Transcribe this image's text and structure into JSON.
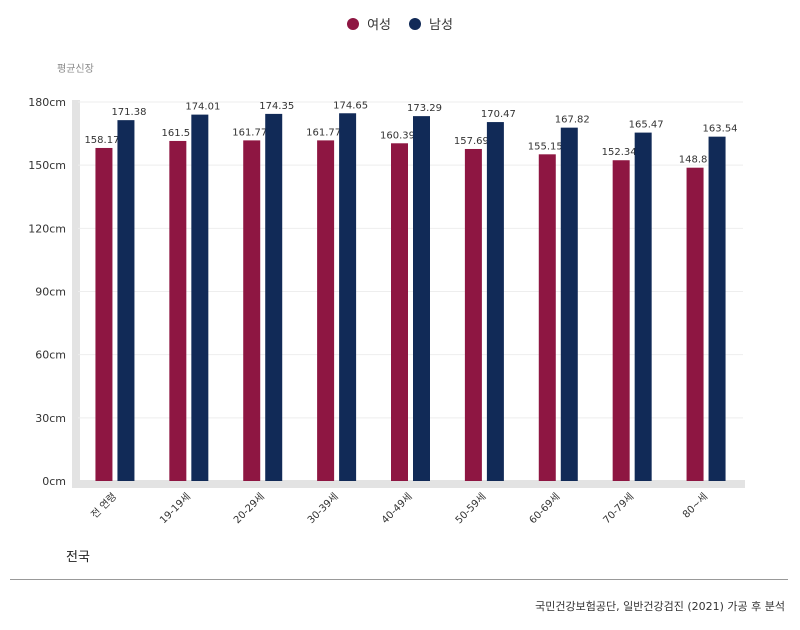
{
  "legend": {
    "female_label": "여성",
    "male_label": "남성"
  },
  "colors": {
    "female": "#8e1642",
    "male": "#112a57",
    "axis": "#e3e3e3",
    "grid": "#eeeeee"
  },
  "region_label": "전국",
  "source_text": "국민건강보험공단, 일반건강검진 (2021) 가공 후 분석",
  "chart_data": {
    "type": "bar",
    "ylabel": "평균신장",
    "ylim": [
      0,
      180
    ],
    "yticks": [
      "0cm",
      "30cm",
      "60cm",
      "90cm",
      "120cm",
      "150cm",
      "180cm"
    ],
    "ytick_values": [
      0,
      30,
      60,
      90,
      120,
      150,
      180
    ],
    "categories": [
      "전 연령",
      "19-19세",
      "20-29세",
      "30-39세",
      "40-49세",
      "50-59세",
      "60-69세",
      "70-79세",
      "80~세"
    ],
    "series": [
      {
        "name": "여성",
        "values": [
          158.17,
          161.5,
          161.77,
          161.77,
          160.39,
          157.69,
          155.15,
          152.34,
          148.8
        ],
        "labels": [
          "158.17",
          "161.5",
          "161.77",
          "161.77",
          "160.39",
          "157.69",
          "155.15",
          "152.34",
          "148.8"
        ]
      },
      {
        "name": "남성",
        "values": [
          171.38,
          174.01,
          174.35,
          174.65,
          173.29,
          170.47,
          167.82,
          165.47,
          163.54
        ],
        "labels": [
          "171.38",
          "174.01",
          "174.35",
          "174.65",
          "173.29",
          "170.47",
          "167.82",
          "165.47",
          "163.54"
        ]
      }
    ],
    "grid": true,
    "legend_position": "top-center"
  }
}
